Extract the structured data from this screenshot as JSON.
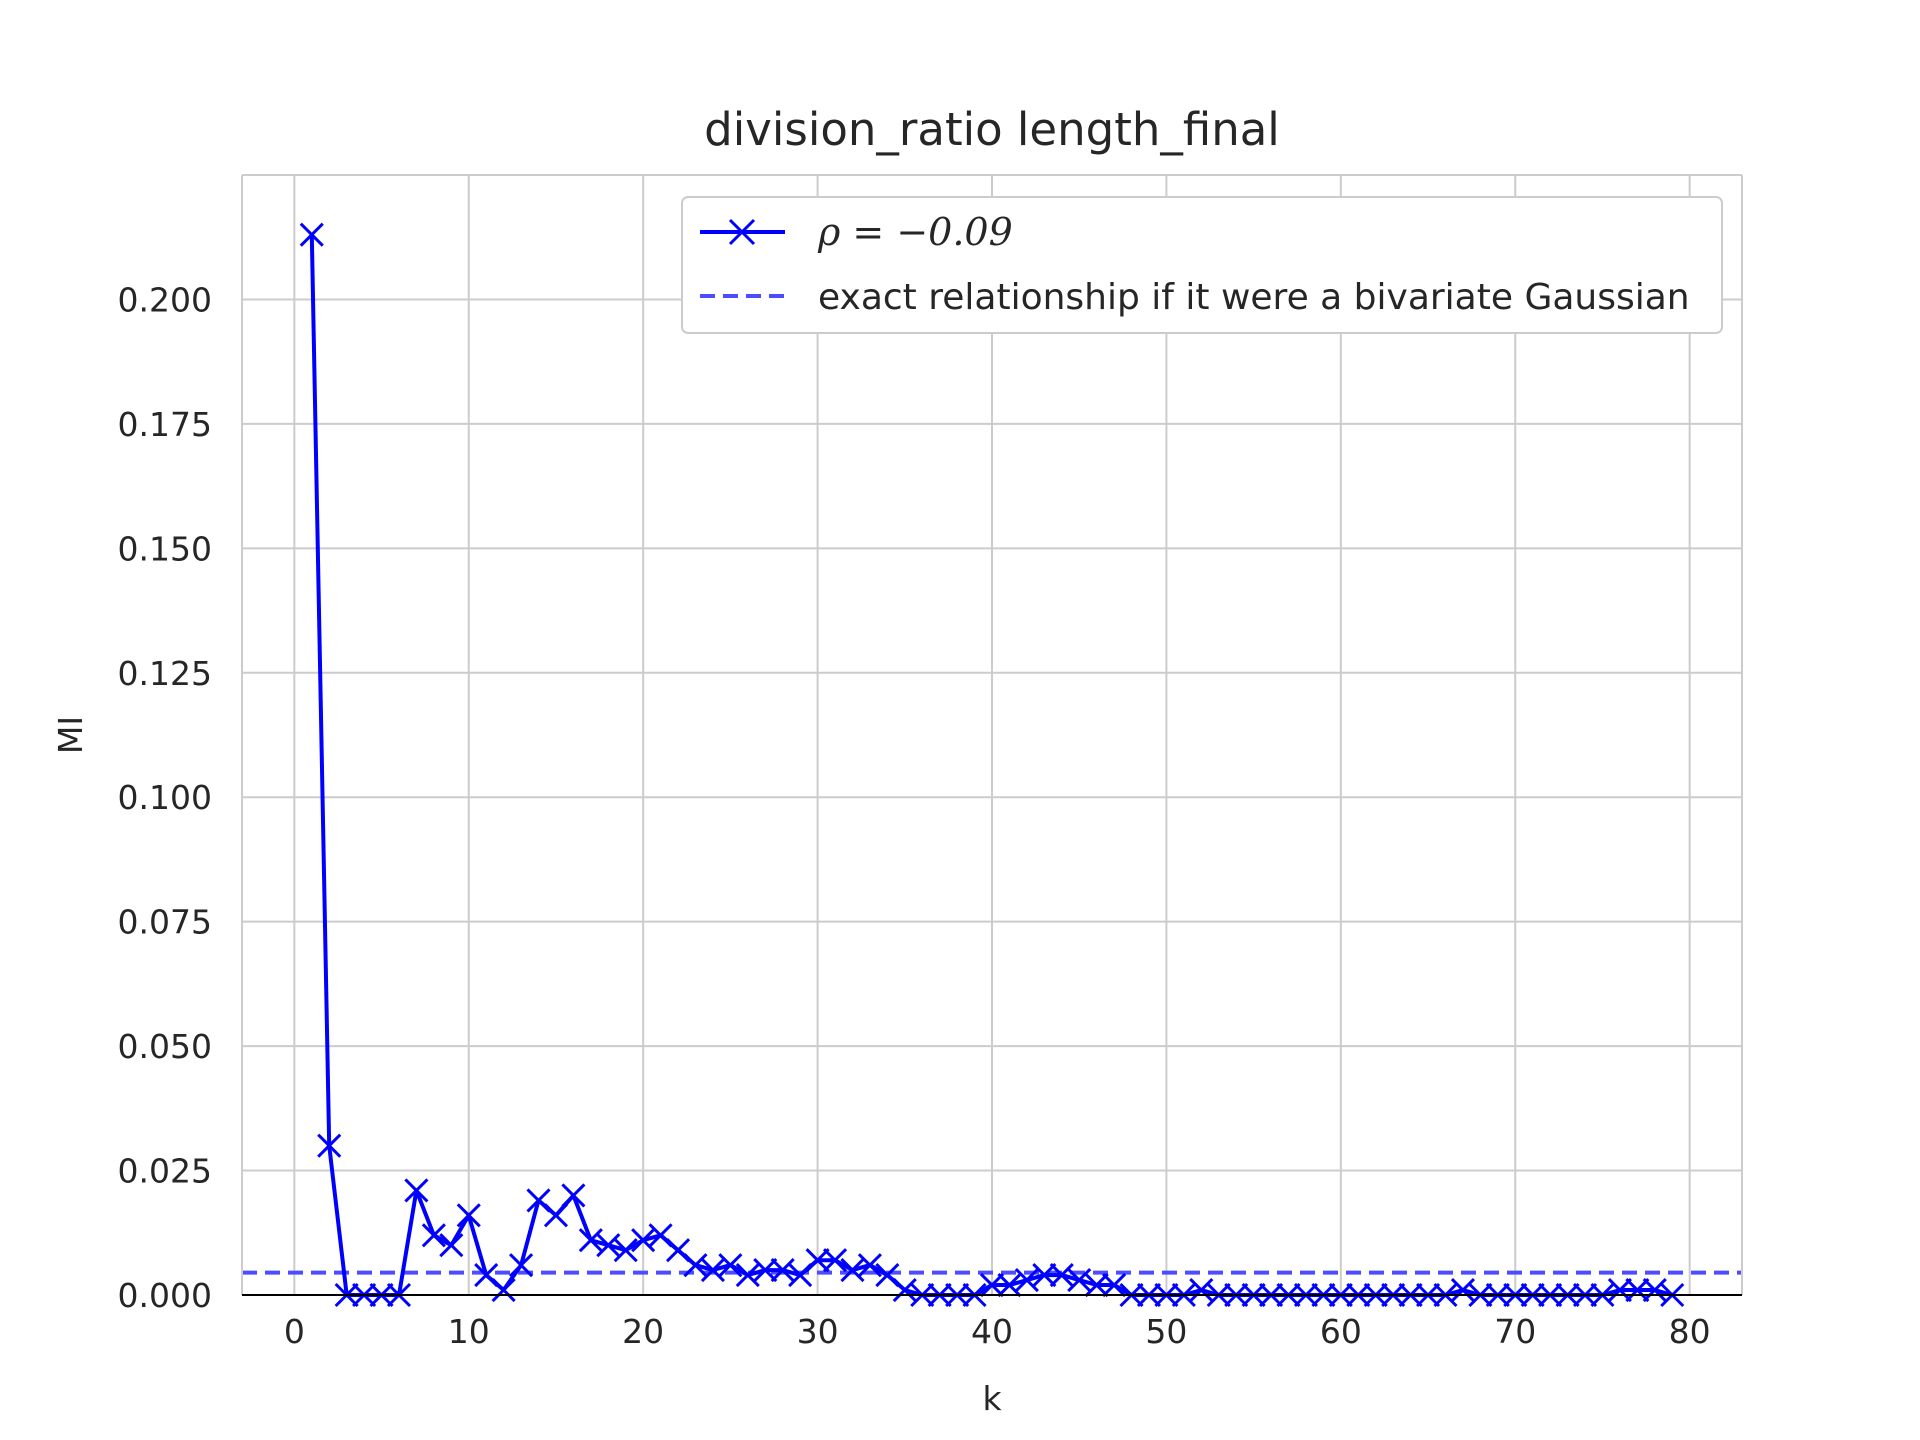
{
  "chart_data": {
    "type": "line",
    "title": "division_ratio length_final",
    "xlabel": "k",
    "ylabel": "MI",
    "xlim": [
      -3,
      83
    ],
    "ylim": [
      0,
      0.225
    ],
    "xticks": [
      0,
      10,
      20,
      30,
      40,
      50,
      60,
      70,
      80
    ],
    "yticks": [
      0,
      0.025,
      0.05,
      0.075,
      0.1,
      0.125,
      0.15,
      0.175,
      0.2
    ],
    "ytick_labels": [
      "0.000",
      "0.025",
      "0.050",
      "0.075",
      "0.100",
      "0.125",
      "0.150",
      "0.175",
      "0.200"
    ],
    "grid": true,
    "legend_position": "top-right",
    "series": [
      {
        "name": "ρ = −0.09",
        "style": "solid-with-x-markers",
        "color": "#0000ff",
        "x": [
          1,
          2,
          3,
          4,
          5,
          6,
          7,
          8,
          9,
          10,
          11,
          12,
          13,
          14,
          15,
          16,
          17,
          18,
          19,
          20,
          21,
          22,
          23,
          24,
          25,
          26,
          27,
          28,
          29,
          30,
          31,
          32,
          33,
          34,
          35,
          36,
          37,
          38,
          39,
          40,
          41,
          42,
          43,
          44,
          45,
          46,
          47,
          48,
          49,
          50,
          51,
          52,
          53,
          54,
          55,
          56,
          57,
          58,
          59,
          60,
          61,
          62,
          63,
          64,
          65,
          66,
          67,
          68,
          69,
          70,
          71,
          72,
          73,
          74,
          75,
          76,
          77,
          78,
          79
        ],
        "y": [
          0.213,
          0.03,
          0,
          0,
          0,
          0,
          0.021,
          0.012,
          0.01,
          0.016,
          0.004,
          0.001,
          0.006,
          0.019,
          0.016,
          0.02,
          0.011,
          0.01,
          0.009,
          0.011,
          0.012,
          0.009,
          0.006,
          0.005,
          0.006,
          0.004,
          0.005,
          0.005,
          0.004,
          0.007,
          0.007,
          0.005,
          0.006,
          0.004,
          0.001,
          0,
          0,
          0,
          0,
          0.002,
          0.002,
          0.003,
          0.004,
          0.004,
          0.003,
          0.002,
          0.002,
          0,
          0,
          0,
          0,
          0.001,
          0,
          0,
          0,
          0,
          0,
          0,
          0,
          0,
          0,
          0,
          0,
          0,
          0,
          0,
          0.001,
          0,
          0,
          0,
          0,
          0,
          0,
          0,
          0,
          0.001,
          0.001,
          0.001,
          0
        ]
      },
      {
        "name": "exact relationship if it were a bivariate Gaussian",
        "style": "dashed",
        "color": "#4d4dff",
        "y_constant": 0.0045
      }
    ]
  }
}
